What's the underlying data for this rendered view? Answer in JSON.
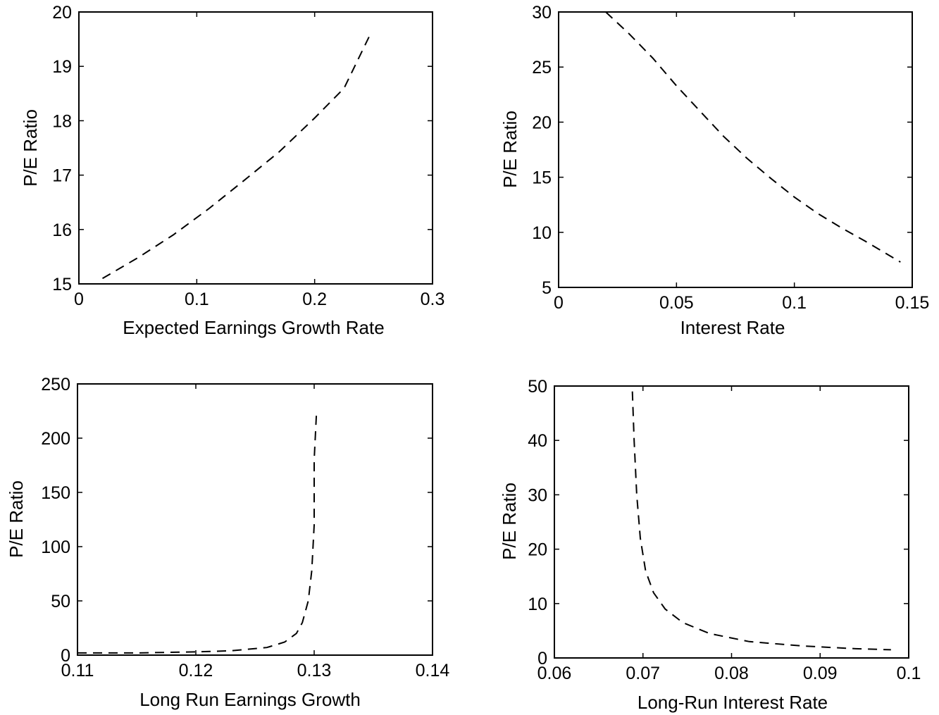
{
  "chart_data": [
    {
      "type": "line",
      "xlabel": "Expected Earnings Growth Rate",
      "ylabel": "P/E Ratio",
      "xlim": [
        0,
        0.3
      ],
      "ylim": [
        15,
        20
      ],
      "xticks": [
        "0",
        "0.1",
        "0.2",
        "0.3"
      ],
      "yticks": [
        "15",
        "16",
        "17",
        "18",
        "19",
        "20"
      ],
      "grid": false,
      "series": [
        {
          "style": "dashed",
          "x": [
            0.02,
            0.05,
            0.08,
            0.11,
            0.14,
            0.17,
            0.2,
            0.225,
            0.247
          ],
          "y": [
            15.1,
            15.48,
            15.9,
            16.38,
            16.9,
            17.43,
            18.05,
            18.6,
            19.58
          ]
        }
      ]
    },
    {
      "type": "line",
      "xlabel": "Interest Rate",
      "ylabel": "P/E Ratio",
      "xlim": [
        0,
        0.15
      ],
      "ylim": [
        5,
        30
      ],
      "xticks": [
        "0",
        "0.05",
        "0.1",
        "0.15"
      ],
      "yticks": [
        "5",
        "10",
        "15",
        "20",
        "25",
        "30"
      ],
      "grid": false,
      "series": [
        {
          "style": "dashed",
          "x": [
            0.02,
            0.03,
            0.04,
            0.05,
            0.06,
            0.07,
            0.08,
            0.09,
            0.1,
            0.11,
            0.12,
            0.13,
            0.145
          ],
          "y": [
            30,
            28,
            25.8,
            23.3,
            21,
            18.7,
            16.7,
            14.9,
            13.2,
            11.7,
            10.4,
            9.2,
            7.3
          ]
        }
      ]
    },
    {
      "type": "line",
      "xlabel": "Long Run Earnings Growth",
      "ylabel": "P/E Ratio",
      "xlim": [
        0.11,
        0.14
      ],
      "ylim": [
        0,
        250
      ],
      "xticks": [
        "0.11",
        "0.12",
        "0.13",
        "0.14"
      ],
      "yticks": [
        "0",
        "50",
        "100",
        "150",
        "200",
        "250"
      ],
      "grid": false,
      "series": [
        {
          "style": "dashed",
          "x": [
            0.11,
            0.115,
            0.12,
            0.123,
            0.126,
            0.1275,
            0.1285,
            0.129,
            0.1295,
            0.1298,
            0.13,
            0.13,
            0.1302
          ],
          "y": [
            2,
            2,
            3,
            4,
            7,
            12,
            20,
            30,
            50,
            78,
            120,
            180,
            225
          ]
        }
      ]
    },
    {
      "type": "line",
      "xlabel": "Long-Run Interest Rate",
      "ylabel": "P/E Ratio",
      "xlim": [
        0.06,
        0.1
      ],
      "ylim": [
        0,
        50
      ],
      "xticks": [
        "0.06",
        "0.07",
        "0.08",
        "0.09",
        "0.1"
      ],
      "yticks": [
        "0",
        "10",
        "20",
        "30",
        "40",
        "50"
      ],
      "grid": false,
      "series": [
        {
          "style": "dashed",
          "x": [
            0.0688,
            0.069,
            0.0693,
            0.0697,
            0.0703,
            0.0712,
            0.0725,
            0.0745,
            0.0775,
            0.082,
            0.088,
            0.094,
            0.098
          ],
          "y": [
            49,
            40,
            30,
            22,
            16,
            12,
            9,
            6.5,
            4.5,
            3,
            2.2,
            1.7,
            1.5
          ]
        }
      ]
    }
  ]
}
